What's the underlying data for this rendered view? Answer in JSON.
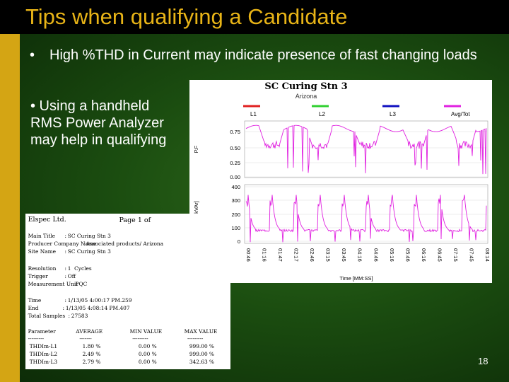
{
  "slide": {
    "title": "Tips when qualifying a Candidate",
    "bullets": [
      {
        "marker": "•",
        "text": "High %THD in Current may indicate presence of fast changing loads"
      },
      {
        "text": "• Using a handheld RMS Power Analyzer may help in qualifying"
      }
    ],
    "page_number": "18",
    "colors": {
      "title": "#e8b417",
      "background": "#1b4d10",
      "accent_bar": "#d4a514"
    }
  },
  "chart_data": {
    "type": "line",
    "title": "SC Curing Stn 3",
    "subtitle": "Arizona",
    "legend": [
      {
        "name": "L1",
        "color": "#e02020"
      },
      {
        "name": "L2",
        "color": "#30d030"
      },
      {
        "name": "L3",
        "color": "#1010c0"
      },
      {
        "name": "Avg/Tot",
        "color": "#e020e0"
      }
    ],
    "legend_position": "top",
    "xlabel": "Time [MM:SS]",
    "x_ticks": [
      "00:46",
      "01:16",
      "01:47",
      "02:17",
      "02:46",
      "03:15",
      "03:45",
      "04:16",
      "04:46",
      "05:16",
      "05:46",
      "06:16",
      "06:45",
      "07:15",
      "07:45",
      "08:14"
    ],
    "panels": [
      {
        "ylabel": "P.F",
        "yticks": [
          "0.75",
          "0.50",
          "0.25",
          "0.00"
        ],
        "ylim": [
          0,
          0.9
        ]
      },
      {
        "ylabel": "Q [kVAr]",
        "yticks": [
          "400",
          "300",
          "200",
          "100",
          "0"
        ],
        "ylim": [
          0,
          400
        ]
      }
    ],
    "series_color": "#e020e0"
  },
  "report": {
    "company": "Elspec Ltd.",
    "page": "Page 1 of",
    "fields": [
      {
        "label": "Main Title",
        "sep": ":",
        "value": "SC Curing Stn 3"
      },
      {
        "label": "Producer Company Name",
        "sep": ":",
        "value": "Associated products/ Arizona"
      },
      {
        "label": "Site Name",
        "sep": ":",
        "value": "SC Curing Stn 3"
      }
    ],
    "settings": [
      {
        "label": "Resolution",
        "sep": ":",
        "value": "1  Cycles"
      },
      {
        "label": "Trigger",
        "sep": ":",
        "value": "Off"
      },
      {
        "label": "Measurement Unit",
        "sep": ":",
        "value": "PQC"
      }
    ],
    "timing": [
      {
        "label": "Time",
        "sep": ":",
        "value": "1/13/05 4:00:17 PM.259"
      },
      {
        "label": "End",
        "sep": ":",
        "value": "1/13/05 4:08:14 PM.407"
      },
      {
        "label": "Total Samples",
        "sep": ":",
        "value": "27583"
      }
    ],
    "table": {
      "headers": [
        "Parameter",
        "AVERAGE",
        "MIN VALUE",
        "MAX VALUE"
      ],
      "dashes": [
        "---------",
        "-------",
        "---------",
        "---------"
      ],
      "rows": [
        [
          "THDIm-L1",
          "1.80 %",
          "0.00 %",
          "999.00 %"
        ],
        [
          "THDIm-L2",
          "2.49 %",
          "0.00 %",
          "999.00 %"
        ],
        [
          "THDIm-L3",
          "2.79 %",
          "0.00 %",
          "342.63 %"
        ]
      ]
    }
  }
}
